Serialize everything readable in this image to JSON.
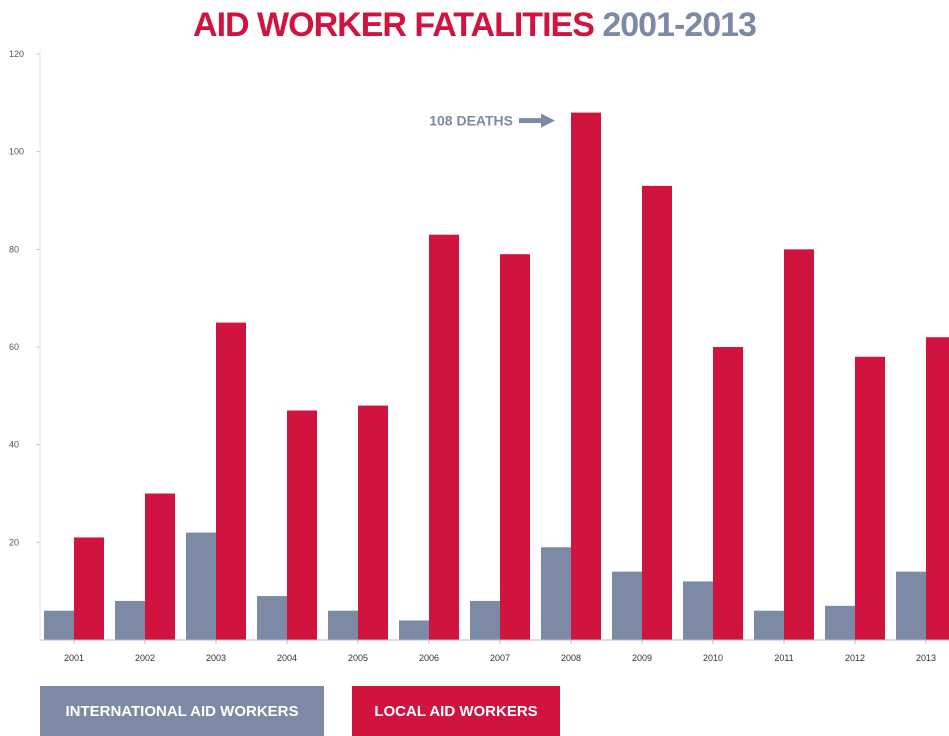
{
  "chart_data": {
    "type": "bar",
    "title": "AID WORKER FATALITIES",
    "title_range": "2001-2013",
    "categories": [
      "2001",
      "2002",
      "2003",
      "2004",
      "2005",
      "2006",
      "2007",
      "2008",
      "2009",
      "2010",
      "2011",
      "2012",
      "2013"
    ],
    "series": [
      {
        "name": "INTERNATIONAL AID WORKERS",
        "color": "#7d8aa6",
        "values": [
          6,
          8,
          22,
          9,
          6,
          4,
          8,
          19,
          14,
          12,
          6,
          7,
          14
        ]
      },
      {
        "name": "LOCAL AID WORKERS",
        "color": "#d0143f",
        "values": [
          21,
          30,
          65,
          47,
          48,
          83,
          79,
          108,
          93,
          60,
          80,
          58,
          62
        ]
      }
    ],
    "ylim": [
      0,
      120
    ],
    "yticks": [
      20,
      40,
      60,
      80,
      100,
      120
    ],
    "annotation": {
      "text": "108 DEATHS",
      "target_category": "2008",
      "target_value": 108
    },
    "legend_position": "bottom-left",
    "grid": false
  }
}
